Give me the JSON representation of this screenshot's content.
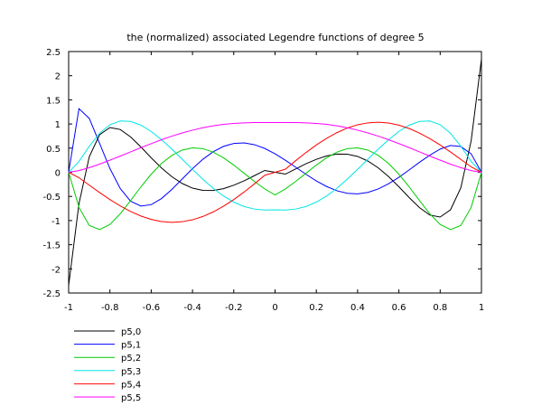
{
  "chart_data": {
    "type": "line",
    "title": "the (normalized) associated Legendre functions of degree 5",
    "xlabel": "",
    "ylabel": "",
    "xlim": [
      -1,
      1
    ],
    "ylim": [
      -2.5,
      2.5
    ],
    "x_ticks": [
      -1,
      -0.8,
      -0.6,
      -0.4,
      -0.2,
      0,
      0.2,
      0.4,
      0.6,
      0.8,
      1
    ],
    "x_tick_labels": [
      "-1",
      "-0.8",
      "-0.6",
      "-0.4",
      "-0.2",
      "0",
      "0.2",
      "0.4",
      "0.6",
      "0.8",
      "1"
    ],
    "y_ticks": [
      -2.5,
      -2,
      -1.5,
      -1,
      -0.5,
      0,
      0.5,
      1,
      1.5,
      2,
      2.5
    ],
    "y_tick_labels": [
      "-2.5",
      "-2",
      "-1.5",
      "-1",
      "-0.5",
      "0",
      "0.5",
      "1",
      "1.5",
      "2",
      "2.5"
    ],
    "grid": false,
    "legend_position": "bottom-left",
    "x": [
      -1,
      -0.95,
      -0.9,
      -0.85,
      -0.8,
      -0.75,
      -0.7,
      -0.65,
      -0.6,
      -0.55,
      -0.5,
      -0.45,
      -0.4,
      -0.35,
      -0.3,
      -0.25,
      -0.2,
      -0.15,
      -0.1,
      -0.05,
      0,
      0.05,
      0.1,
      0.15,
      0.2,
      0.25,
      0.3,
      0.35,
      0.4,
      0.45,
      0.5,
      0.55,
      0.6,
      0.65,
      0.7,
      0.75,
      0.8,
      0.85,
      0.9,
      0.95,
      1
    ],
    "series": [
      {
        "name": "p5,0",
        "color": "#000000",
        "values": [
          -2.345,
          -0.649,
          0.322,
          0.777,
          0.927,
          0.886,
          0.733,
          0.524,
          0.299,
          0.089,
          -0.092,
          -0.232,
          -0.328,
          -0.375,
          -0.377,
          -0.339,
          -0.268,
          -0.176,
          -0.07,
          0.038,
          0.0,
          -0.038,
          0.07,
          0.176,
          0.268,
          0.339,
          0.377,
          0.375,
          0.328,
          0.232,
          0.092,
          -0.089,
          -0.299,
          -0.524,
          -0.733,
          -0.886,
          -0.927,
          -0.777,
          -0.322,
          0.649,
          2.345
        ]
      },
      {
        "name": "p5,1",
        "color": "#0000ff",
        "values": [
          0.0,
          1.318,
          1.115,
          0.598,
          0.077,
          -0.337,
          -0.598,
          -0.7,
          -0.671,
          -0.544,
          -0.356,
          -0.14,
          0.075,
          0.268,
          0.425,
          0.536,
          0.597,
          0.608,
          0.572,
          0.494,
          0.383,
          0.25,
          0.105,
          -0.042,
          -0.178,
          -0.295,
          -0.383,
          -0.435,
          -0.447,
          -0.416,
          -0.345,
          -0.238,
          -0.104,
          0.049,
          0.207,
          0.354,
          0.48,
          0.554,
          0.533,
          0.383,
          0.0
        ]
      },
      {
        "name": "p5,2",
        "color": "#00cc00",
        "values": [
          0.0,
          -0.727,
          -1.103,
          -1.186,
          -1.08,
          -0.86,
          -0.586,
          -0.302,
          -0.04,
          0.182,
          0.35,
          0.459,
          0.505,
          0.49,
          0.418,
          0.3,
          0.149,
          -0.02,
          -0.19,
          -0.344,
          -0.469,
          -0.345,
          -0.19,
          -0.02,
          0.149,
          0.3,
          0.418,
          0.49,
          0.505,
          0.459,
          0.35,
          0.182,
          -0.04,
          -0.302,
          -0.586,
          -0.86,
          -1.08,
          -1.186,
          -1.103,
          -0.727,
          0.0
        ]
      },
      {
        "name": "p5,3",
        "color": "#00e5e5",
        "values": [
          0.0,
          0.223,
          0.538,
          0.808,
          0.985,
          1.063,
          1.054,
          0.976,
          0.845,
          0.675,
          0.48,
          0.271,
          0.06,
          -0.143,
          -0.33,
          -0.491,
          -0.618,
          -0.709,
          -0.762,
          -0.782,
          -0.778,
          -0.782,
          -0.762,
          -0.709,
          -0.618,
          -0.491,
          -0.33,
          -0.143,
          0.06,
          0.271,
          0.48,
          0.675,
          0.845,
          0.976,
          1.054,
          1.063,
          0.985,
          0.808,
          0.538,
          0.223,
          0.0
        ]
      },
      {
        "name": "p5,4",
        "color": "#ff0000",
        "values": [
          0.0,
          -0.113,
          -0.267,
          -0.42,
          -0.565,
          -0.697,
          -0.812,
          -0.906,
          -0.976,
          -1.02,
          -1.036,
          -1.024,
          -0.984,
          -0.916,
          -0.822,
          -0.704,
          -0.565,
          -0.409,
          -0.24,
          -0.063,
          0.0,
          0.063,
          0.24,
          0.409,
          0.565,
          0.704,
          0.822,
          0.916,
          0.984,
          1.024,
          1.036,
          1.02,
          0.976,
          0.906,
          0.812,
          0.697,
          0.565,
          0.42,
          0.267,
          0.113,
          0.0
        ]
      },
      {
        "name": "p5,5",
        "color": "#ff00ff",
        "values": [
          0.0,
          0.036,
          0.096,
          0.169,
          0.25,
          0.335,
          0.423,
          0.51,
          0.594,
          0.674,
          0.748,
          0.815,
          0.872,
          0.922,
          0.961,
          0.992,
          1.012,
          1.024,
          1.029,
          1.03,
          1.03,
          1.03,
          1.029,
          1.024,
          1.012,
          0.992,
          0.961,
          0.922,
          0.872,
          0.815,
          0.748,
          0.674,
          0.594,
          0.51,
          0.423,
          0.335,
          0.25,
          0.169,
          0.096,
          0.036,
          0.0
        ]
      }
    ]
  }
}
